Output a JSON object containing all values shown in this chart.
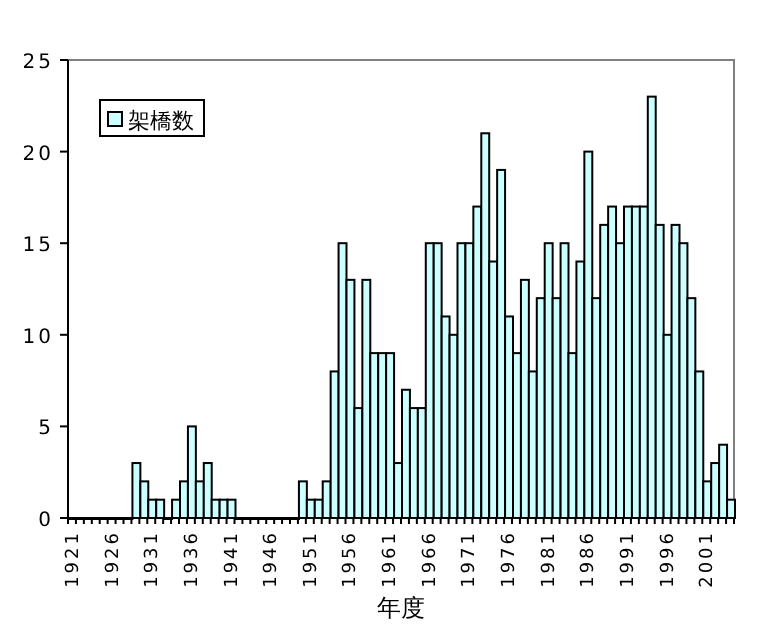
{
  "chart_data": {
    "type": "bar",
    "xlabel": "年度",
    "categories": [
      "1921",
      null,
      null,
      null,
      null,
      "1926",
      null,
      null,
      null,
      null,
      "1931",
      null,
      null,
      null,
      null,
      "1936",
      null,
      null,
      null,
      null,
      "1941",
      null,
      null,
      null,
      null,
      "1946",
      null,
      null,
      null,
      null,
      "1951",
      null,
      null,
      null,
      null,
      "1956",
      null,
      null,
      null,
      null,
      "1961",
      null,
      null,
      null,
      null,
      "1966",
      null,
      null,
      null,
      null,
      "1971",
      null,
      null,
      null,
      null,
      "1976",
      null,
      null,
      null,
      null,
      "1981",
      null,
      null,
      null,
      null,
      "1986",
      null,
      null,
      null,
      null,
      "1991",
      null,
      null,
      null,
      null,
      "1996",
      null,
      null,
      null,
      null,
      "2001",
      null,
      null,
      null
    ],
    "series": [
      {
        "name": "架橋数",
        "color": "#ccffff",
        "values": [
          0,
          0,
          0,
          0,
          0,
          0,
          0,
          0,
          3,
          2,
          1,
          1,
          0,
          1,
          2,
          5,
          2,
          3,
          1,
          1,
          1,
          0,
          0,
          0,
          0,
          0,
          0,
          0,
          0,
          2,
          1,
          1,
          2,
          8,
          15,
          13,
          6,
          13,
          9,
          9,
          9,
          3,
          7,
          6,
          6,
          15,
          15,
          11,
          10,
          15,
          15,
          17,
          21,
          14,
          19,
          11,
          9,
          13,
          8,
          12,
          15,
          12,
          15,
          9,
          14,
          20,
          12,
          16,
          17,
          15,
          17,
          17,
          17,
          23,
          16,
          10,
          16,
          15,
          12,
          8,
          2,
          3,
          4,
          1
        ]
      }
    ],
    "ylim": [
      0,
      25
    ],
    "yticks": [
      0,
      5,
      10,
      15,
      20,
      25
    ],
    "legend": "top left",
    "grid": false
  }
}
